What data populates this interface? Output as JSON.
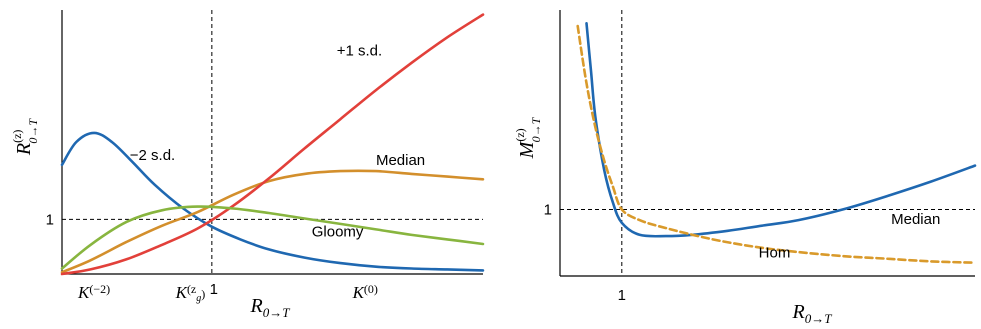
{
  "chart_data": [
    {
      "type": "line",
      "title": "",
      "xlabel": "R",
      "xlabel_sub": "0→T",
      "ylabel": "R",
      "ylabel_sup": "(z)",
      "ylabel_sub": "0→T",
      "x_tick_labels": [
        {
          "base": "K",
          "sup": "(−2)",
          "x": 0.55
        },
        {
          "base": "K",
          "sup": "(z",
          "sup_sub": "g",
          "sup_end": ")",
          "x": 1.9
        },
        {
          "base": "",
          "sup": "1",
          "x": 2.2,
          "plain": true
        },
        {
          "base": "K",
          "sup": "(0)",
          "x": 4.35
        }
      ],
      "y_tick_labels": [
        {
          "label": "1",
          "y": 1
        }
      ],
      "xlim": [
        0.1,
        6
      ],
      "ylim": [
        0.4,
        3.3
      ],
      "reference_lines": {
        "x": 2.2,
        "y": 1
      },
      "series": [
        {
          "name": "−2 s.d.",
          "color": "#1f68b1",
          "x": [
            0.1,
            0.3,
            0.55,
            0.8,
            1.1,
            1.4,
            1.8,
            2.2,
            2.6,
            3.0,
            3.5,
            4.0,
            4.5,
            5.0,
            5.5,
            6.0
          ],
          "y": [
            1.6,
            1.85,
            1.95,
            1.85,
            1.62,
            1.38,
            1.12,
            0.92,
            0.78,
            0.67,
            0.58,
            0.52,
            0.48,
            0.46,
            0.45,
            0.44
          ]
        },
        {
          "name": "Median",
          "color": "#d38f2c",
          "x": [
            0.1,
            0.5,
            1.0,
            1.5,
            2.0,
            2.5,
            3.0,
            3.5,
            4.0,
            4.5,
            5.0,
            5.5,
            6.0
          ],
          "y": [
            0.42,
            0.55,
            0.75,
            0.93,
            1.08,
            1.27,
            1.42,
            1.5,
            1.53,
            1.53,
            1.5,
            1.47,
            1.44
          ]
        },
        {
          "name": "+1 s.d.",
          "color": "#e2403a",
          "x": [
            0.1,
            0.5,
            1.0,
            1.5,
            2.0,
            2.5,
            3.0,
            3.5,
            4.0,
            4.5,
            5.0,
            5.5,
            6.0
          ],
          "y": [
            0.4,
            0.45,
            0.56,
            0.72,
            0.9,
            1.15,
            1.45,
            1.78,
            2.1,
            2.42,
            2.72,
            3.0,
            3.25
          ]
        },
        {
          "name": "Gloomy",
          "color": "#88b53f",
          "x": [
            0.1,
            0.5,
            1.0,
            1.5,
            2.0,
            2.5,
            3.0,
            3.5,
            4.0,
            4.5,
            5.0,
            5.5,
            6.0
          ],
          "y": [
            0.46,
            0.72,
            0.97,
            1.1,
            1.14,
            1.12,
            1.07,
            1.01,
            0.95,
            0.89,
            0.83,
            0.78,
            0.73
          ]
        }
      ],
      "series_labels": [
        {
          "text": "−2 s.d.",
          "x": 1.05,
          "y": 1.65
        },
        {
          "text": "+1 s.d.",
          "x": 3.95,
          "y": 2.8
        },
        {
          "text": "Median",
          "x": 4.5,
          "y": 1.6
        },
        {
          "text": "Gloomy",
          "x": 3.6,
          "y": 0.81
        }
      ]
    },
    {
      "type": "line",
      "title": "",
      "xlabel": "R",
      "xlabel_sub": "0→T",
      "ylabel": "M",
      "ylabel_sup": "(z)",
      "ylabel_sub": "0→T",
      "x_tick_labels": [
        {
          "label": "1",
          "x": 1
        }
      ],
      "y_tick_labels": [
        {
          "label": "1",
          "y": 1
        }
      ],
      "xlim": [
        0.3,
        5
      ],
      "ylim": [
        0.5,
        2.5
      ],
      "reference_lines": {
        "x": 1,
        "y": 1
      },
      "series": [
        {
          "name": "Median",
          "color": "#1f68b1",
          "style": "solid",
          "x": [
            0.6,
            0.65,
            0.7,
            0.8,
            0.9,
            1.0,
            1.2,
            1.5,
            1.8,
            2.2,
            2.6,
            3.0,
            3.5,
            4.0,
            4.5,
            5.0
          ],
          "y": [
            2.4,
            2.05,
            1.7,
            1.3,
            1.05,
            0.9,
            0.81,
            0.8,
            0.81,
            0.84,
            0.88,
            0.92,
            1.0,
            1.1,
            1.21,
            1.33
          ]
        },
        {
          "name": "Hom",
          "color": "#d99a2b",
          "style": "dashed",
          "x": [
            0.5,
            0.6,
            0.7,
            0.8,
            0.9,
            1.0,
            1.2,
            1.5,
            2.0,
            2.5,
            3.0,
            3.5,
            4.0,
            4.5,
            5.0
          ],
          "y": [
            2.38,
            1.95,
            1.62,
            1.37,
            1.17,
            1.0,
            0.92,
            0.86,
            0.78,
            0.72,
            0.68,
            0.65,
            0.63,
            0.61,
            0.6
          ]
        }
      ],
      "series_labels": [
        {
          "text": "Median",
          "x": 4.05,
          "y": 0.89
        },
        {
          "text": "Hom",
          "x": 2.55,
          "y": 0.64
        }
      ]
    }
  ]
}
